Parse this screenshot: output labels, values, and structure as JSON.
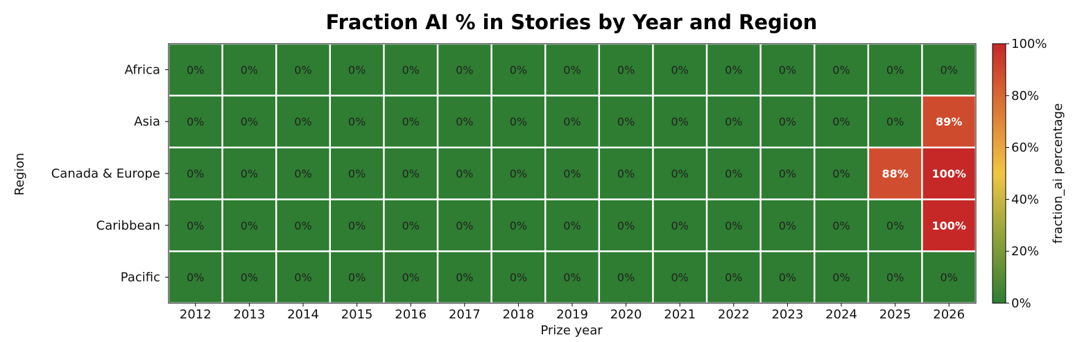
{
  "chart_data": {
    "type": "heatmap",
    "title": "Fraction AI % in Stories by Year and Region",
    "xlabel": "Prize year",
    "ylabel": "Region",
    "x_categories": [
      "2012",
      "2013",
      "2014",
      "2015",
      "2016",
      "2017",
      "2018",
      "2019",
      "2020",
      "2021",
      "2022",
      "2023",
      "2024",
      "2025",
      "2026"
    ],
    "y_categories": [
      "Africa",
      "Asia",
      "Canada & Europe",
      "Caribbean",
      "Pacific"
    ],
    "values": [
      [
        0,
        0,
        0,
        0,
        0,
        0,
        0,
        0,
        0,
        0,
        0,
        0,
        0,
        0,
        0
      ],
      [
        0,
        0,
        0,
        0,
        0,
        0,
        0,
        0,
        0,
        0,
        0,
        0,
        0,
        0,
        89
      ],
      [
        0,
        0,
        0,
        0,
        0,
        0,
        0,
        0,
        0,
        0,
        0,
        0,
        0,
        88,
        100
      ],
      [
        0,
        0,
        0,
        0,
        0,
        0,
        0,
        0,
        0,
        0,
        0,
        0,
        0,
        0,
        100
      ],
      [
        0,
        0,
        0,
        0,
        0,
        0,
        0,
        0,
        0,
        0,
        0,
        0,
        0,
        0,
        0
      ]
    ],
    "value_format": "{v}%",
    "colorbar": {
      "label": "fraction_ai percentage",
      "range": [
        0,
        100
      ],
      "ticks": [
        "0%",
        "20%",
        "40%",
        "60%",
        "80%",
        "100%"
      ],
      "colors": [
        "#2e7d32",
        "#f1c644",
        "#c62828"
      ]
    },
    "grid": true
  }
}
